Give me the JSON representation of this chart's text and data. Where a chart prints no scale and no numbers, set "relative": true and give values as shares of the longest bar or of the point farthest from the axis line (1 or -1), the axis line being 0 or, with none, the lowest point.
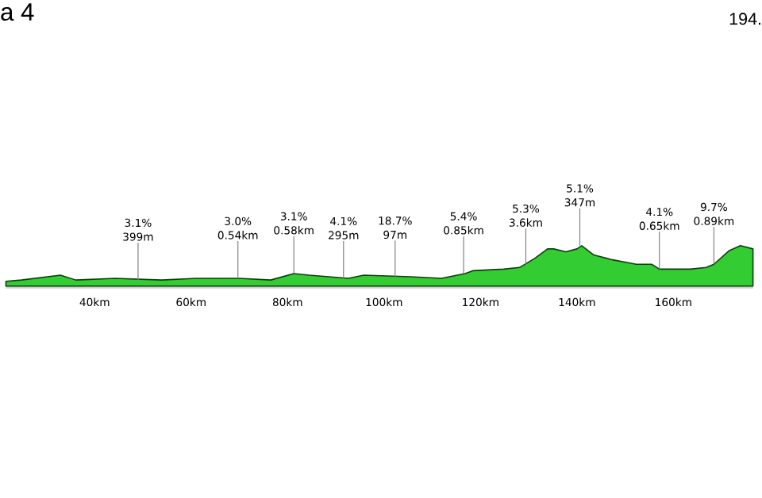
{
  "chart_data": {
    "type": "area",
    "title": "a 4",
    "relative": true,
    "color": "#33cc33",
    "x": [
      21.6,
      24.8,
      32.9,
      36.1,
      44.2,
      53.9,
      61.0,
      70.0,
      76.5,
      81.3,
      84.5,
      92.6,
      95.8,
      105.5,
      111.9,
      116.8,
      118.4,
      124.8,
      128.1,
      131.3,
      133.9,
      135.2,
      137.7,
      140.0,
      141.0,
      143.5,
      147.4,
      150.6,
      152.3,
      155.5,
      157.1,
      163.5,
      166.8,
      168.4,
      171.6,
      173.9,
      176.5
    ],
    "values": [
      0.12,
      0.15,
      0.27,
      0.15,
      0.19,
      0.15,
      0.19,
      0.19,
      0.15,
      0.31,
      0.27,
      0.19,
      0.27,
      0.23,
      0.19,
      0.31,
      0.38,
      0.42,
      0.46,
      0.69,
      0.92,
      0.92,
      0.85,
      0.92,
      1,
      0.77,
      0.65,
      0.58,
      0.54,
      0.54,
      0.42,
      0.42,
      0.46,
      0.54,
      0.88,
      1,
      0.92
    ],
    "xlim": [
      21.6,
      176.5
    ],
    "xticks": [
      {
        "value": 40,
        "label": "40km"
      },
      {
        "value": 60,
        "label": "60km"
      },
      {
        "value": 80,
        "label": "80km"
      },
      {
        "value": 100,
        "label": "100km"
      },
      {
        "value": 120,
        "label": "120km"
      },
      {
        "value": 140,
        "label": "140km"
      },
      {
        "value": 160,
        "label": "160km"
      }
    ],
    "annotations": [
      "194.",
      "3.1%",
      {
        "text": "399m",
        "x": 49.0,
        "y": 0.15
      },
      "3.0%",
      {
        "text": "0.54km",
        "x": 69.7,
        "y": 0.19
      },
      "3.1%",
      {
        "text": "0.58km",
        "x": 81.3,
        "y": 0.31
      },
      "4.1%",
      {
        "text": "295m",
        "x": 91.6,
        "y": 0.19
      },
      "18.7%",
      {
        "text": "97m",
        "x": 102.3,
        "y": 0.2
      },
      "5.4%",
      {
        "text": "0.85km",
        "x": 116.5,
        "y": 0.31
      },
      "5.3%",
      {
        "text": "3.6km",
        "x": 129.4,
        "y": 0.5
      },
      "5.1%",
      {
        "text": "347m",
        "x": 140.6,
        "y": 1
      },
      "4.1%",
      {
        "text": "0.65km",
        "x": 157.1,
        "y": 0.42
      },
      "9.7%",
      {
        "text": "0.89km",
        "x": 168.4,
        "y": 0.54
      }
    ]
  }
}
